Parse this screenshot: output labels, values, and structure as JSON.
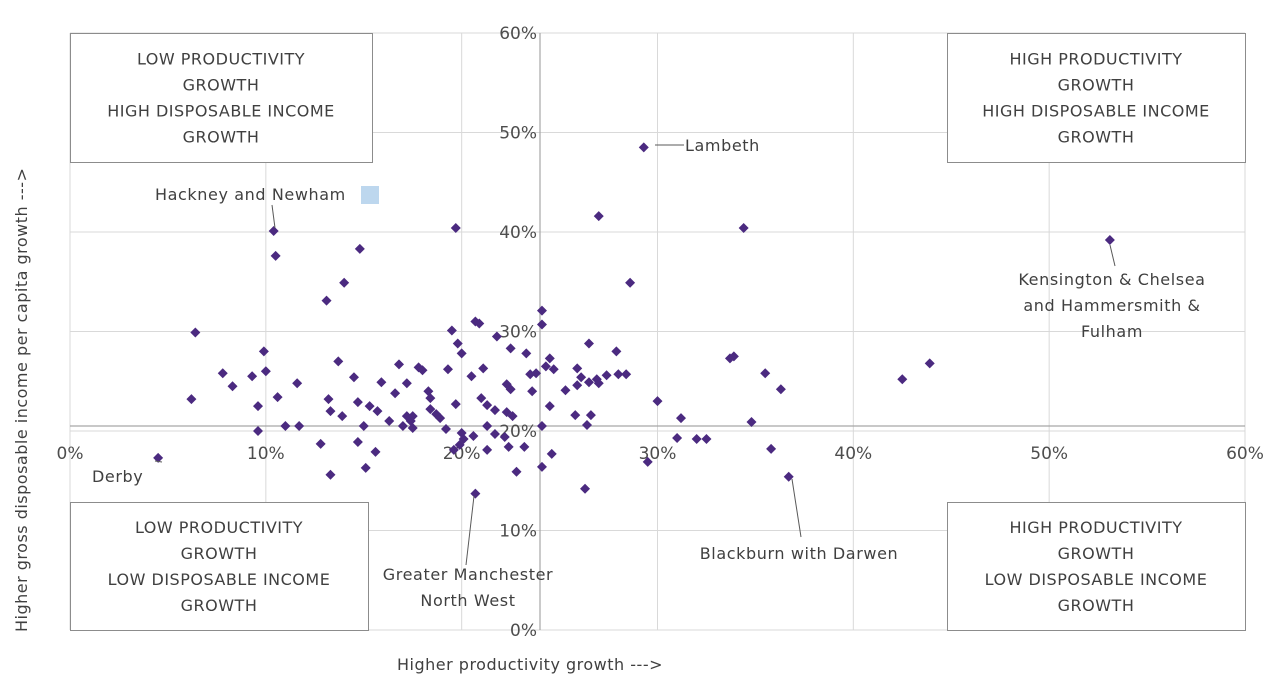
{
  "chart_data": {
    "type": "scatter",
    "xlabel": "Higher productivity growth --->",
    "ylabel": "Higher gross disposable income per capita growth --->",
    "xlim": [
      0,
      60
    ],
    "ylim": [
      0,
      60
    ],
    "x_axis_crosses_y_at": 20.5,
    "y_axis_at_x": 24,
    "grid": true,
    "marker_color": "#4b2a80",
    "x_ticks": [
      "0%",
      "10%",
      "20%",
      "30%",
      "40%",
      "50%",
      "60%"
    ],
    "y_ticks": [
      "0%",
      "10%",
      "20%",
      "30%",
      "40%",
      "50%",
      "60%"
    ],
    "quadrants": {
      "top_left": [
        "LOW PRODUCTIVITY",
        "GROWTH",
        "HIGH DISPOSABLE INCOME",
        "GROWTH"
      ],
      "top_right": [
        "HIGH PRODUCTIVITY",
        "GROWTH",
        "HIGH DISPOSABLE INCOME",
        "GROWTH"
      ],
      "bottom_left": [
        "LOW PRODUCTIVITY",
        "GROWTH",
        "LOW DISPOSABLE INCOME",
        "GROWTH"
      ],
      "bottom_right": [
        "HIGH PRODUCTIVITY",
        "GROWTH",
        "LOW DISPOSABLE INCOME",
        "GROWTH"
      ]
    },
    "annotations": [
      {
        "text": [
          "Lambeth"
        ],
        "x": 29.3,
        "y": 48.5
      },
      {
        "text": [
          "Hackney and Newham"
        ],
        "x": 10.4,
        "y": 40.1
      },
      {
        "text": [
          "Kensington & Chelsea",
          "and Hammersmith &",
          "Fulham"
        ],
        "x": 53.1,
        "y": 39.2
      },
      {
        "text": [
          "Derby"
        ],
        "x": 4.5,
        "y": 17.3
      },
      {
        "text": [
          "Greater Manchester",
          "North West"
        ],
        "x": 20.7,
        "y": 13.7
      },
      {
        "text": [
          "Blackburn with Darwen"
        ],
        "x": 36.7,
        "y": 15.4
      }
    ],
    "points": [
      [
        29.3,
        48.5
      ],
      [
        10.4,
        40.1
      ],
      [
        53.1,
        39.2
      ],
      [
        4.5,
        17.3
      ],
      [
        20.7,
        13.7
      ],
      [
        36.7,
        15.4
      ],
      [
        27.0,
        41.6
      ],
      [
        34.4,
        40.4
      ],
      [
        19.7,
        40.4
      ],
      [
        10.5,
        37.6
      ],
      [
        14.8,
        38.3
      ],
      [
        28.6,
        34.9
      ],
      [
        14.0,
        34.9
      ],
      [
        13.1,
        33.1
      ],
      [
        24.1,
        32.1
      ],
      [
        24.1,
        30.7
      ],
      [
        6.4,
        29.9
      ],
      [
        20.7,
        31.0
      ],
      [
        20.9,
        30.8
      ],
      [
        19.5,
        30.1
      ],
      [
        21.8,
        29.5
      ],
      [
        22.5,
        28.3
      ],
      [
        23.3,
        27.8
      ],
      [
        19.8,
        28.8
      ],
      [
        20.0,
        27.8
      ],
      [
        26.5,
        28.8
      ],
      [
        27.9,
        28.0
      ],
      [
        9.9,
        28.0
      ],
      [
        13.7,
        27.0
      ],
      [
        16.8,
        26.7
      ],
      [
        17.8,
        26.4
      ],
      [
        18.0,
        26.1
      ],
      [
        19.3,
        26.2
      ],
      [
        21.1,
        26.3
      ],
      [
        24.5,
        27.3
      ],
      [
        24.3,
        26.5
      ],
      [
        25.9,
        26.3
      ],
      [
        24.7,
        26.2
      ],
      [
        23.8,
        25.8
      ],
      [
        23.5,
        25.7
      ],
      [
        26.1,
        25.4
      ],
      [
        26.9,
        25.2
      ],
      [
        27.4,
        25.6
      ],
      [
        27.0,
        24.8
      ],
      [
        28.0,
        25.7
      ],
      [
        28.4,
        25.7
      ],
      [
        33.7,
        27.3
      ],
      [
        33.9,
        27.5
      ],
      [
        35.5,
        25.8
      ],
      [
        36.3,
        24.2
      ],
      [
        42.5,
        25.2
      ],
      [
        43.9,
        26.8
      ],
      [
        7.8,
        25.8
      ],
      [
        8.3,
        24.5
      ],
      [
        9.3,
        25.5
      ],
      [
        10.0,
        26.0
      ],
      [
        11.6,
        24.8
      ],
      [
        14.5,
        25.4
      ],
      [
        15.9,
        24.9
      ],
      [
        17.2,
        24.8
      ],
      [
        16.6,
        23.8
      ],
      [
        18.3,
        24.0
      ],
      [
        18.4,
        23.3
      ],
      [
        20.5,
        25.5
      ],
      [
        22.3,
        24.7
      ],
      [
        22.5,
        24.2
      ],
      [
        23.6,
        24.0
      ],
      [
        25.3,
        24.1
      ],
      [
        25.9,
        24.6
      ],
      [
        26.5,
        24.9
      ],
      [
        6.2,
        23.2
      ],
      [
        9.6,
        22.5
      ],
      [
        10.6,
        23.4
      ],
      [
        13.2,
        23.2
      ],
      [
        13.3,
        22.0
      ],
      [
        14.7,
        22.9
      ],
      [
        15.3,
        22.5
      ],
      [
        15.7,
        22.0
      ],
      [
        17.2,
        21.5
      ],
      [
        17.4,
        21.0
      ],
      [
        17.5,
        21.5
      ],
      [
        18.4,
        22.2
      ],
      [
        18.7,
        21.7
      ],
      [
        19.7,
        22.7
      ],
      [
        21.0,
        23.3
      ],
      [
        21.3,
        22.6
      ],
      [
        21.7,
        22.1
      ],
      [
        22.3,
        21.9
      ],
      [
        22.6,
        21.5
      ],
      [
        24.5,
        22.5
      ],
      [
        25.8,
        21.6
      ],
      [
        26.6,
        21.6
      ],
      [
        30.0,
        23.0
      ],
      [
        31.2,
        21.3
      ],
      [
        9.6,
        20.0
      ],
      [
        11.0,
        20.5
      ],
      [
        11.7,
        20.5
      ],
      [
        13.9,
        21.5
      ],
      [
        15.0,
        20.5
      ],
      [
        16.3,
        21.0
      ],
      [
        17.0,
        20.5
      ],
      [
        17.5,
        20.3
      ],
      [
        18.9,
        21.3
      ],
      [
        19.2,
        20.2
      ],
      [
        20.0,
        19.8
      ],
      [
        20.6,
        19.5
      ],
      [
        21.3,
        20.5
      ],
      [
        21.7,
        19.7
      ],
      [
        22.2,
        19.4
      ],
      [
        24.1,
        20.5
      ],
      [
        26.4,
        20.6
      ],
      [
        34.8,
        20.9
      ],
      [
        12.8,
        18.7
      ],
      [
        14.7,
        18.9
      ],
      [
        15.6,
        17.9
      ],
      [
        19.6,
        18.1
      ],
      [
        19.9,
        18.6
      ],
      [
        20.1,
        19.2
      ],
      [
        21.3,
        18.1
      ],
      [
        22.4,
        18.4
      ],
      [
        23.2,
        18.4
      ],
      [
        24.6,
        17.7
      ],
      [
        31.0,
        19.3
      ],
      [
        32.0,
        19.2
      ],
      [
        32.5,
        19.2
      ],
      [
        35.8,
        18.2
      ],
      [
        13.3,
        15.6
      ],
      [
        15.1,
        16.3
      ],
      [
        22.8,
        15.9
      ],
      [
        24.1,
        16.4
      ],
      [
        26.3,
        14.2
      ],
      [
        29.5,
        16.9
      ]
    ]
  }
}
